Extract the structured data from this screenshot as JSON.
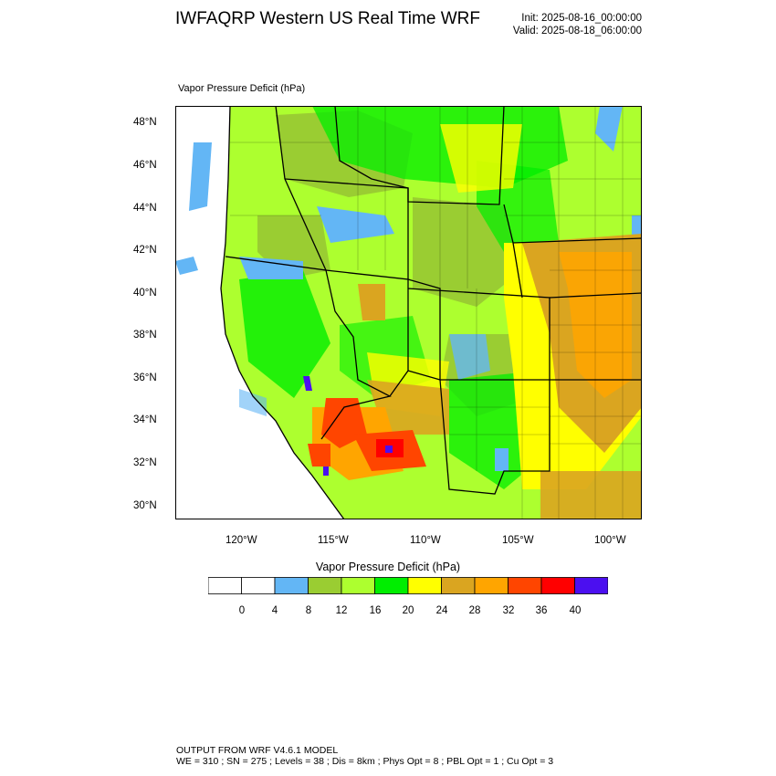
{
  "header": {
    "title": "IWFAQRP Western US Real Time WRF",
    "init": "Init: 2025-08-16_00:00:00",
    "valid": "Valid: 2025-08-18_06:00:00"
  },
  "panel": {
    "variable_label": "Vapor Pressure Deficit   (hPa)"
  },
  "map": {
    "lat_labels": [
      "48°N",
      "46°N",
      "44°N",
      "42°N",
      "40°N",
      "38°N",
      "36°N",
      "34°N",
      "32°N",
      "30°N"
    ],
    "lon_labels": [
      "120°W",
      "115°W",
      "110°W",
      "105°W",
      "100°W"
    ]
  },
  "colorbar": {
    "title": "Vapor Pressure Deficit  (hPa)",
    "colors": [
      "#ffffff",
      "#ffffff",
      "#63b6f5",
      "#9acd32",
      "#adff2f",
      "#00ee00",
      "#ffff00",
      "#daa520",
      "#ffa500",
      "#ff4500",
      "#ff0000",
      "#4b0ff0"
    ],
    "labels": [
      "0",
      "4",
      "8",
      "12",
      "16",
      "20",
      "24",
      "28",
      "32",
      "36",
      "40"
    ]
  },
  "footer": {
    "line1": "OUTPUT FROM WRF V4.6.1 MODEL",
    "line2": "WE = 310 ; SN = 275 ; Levels = 38 ; Dis = 8km ; Phys Opt = 8 ; PBL Opt = 1 ; Cu Opt = 3"
  }
}
